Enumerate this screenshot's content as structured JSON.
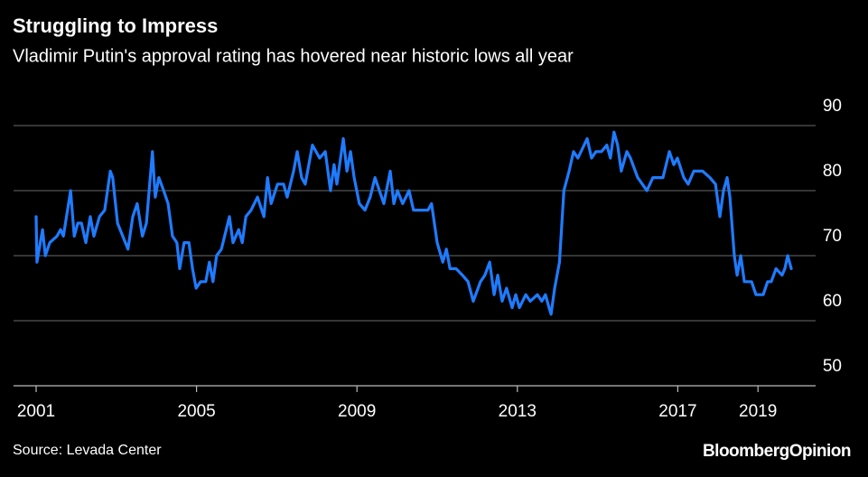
{
  "chart_data": {
    "type": "line",
    "title": "Struggling to Impress",
    "subtitle": "Vladimir Putin's approval rating has hovered near historic lows all year",
    "source": "Source: Levada Center",
    "logo": "BloombergOpinion",
    "x": [
      2001.0,
      2001.02,
      2001.16,
      2001.23,
      2001.34,
      2001.52,
      2001.61,
      2001.68,
      2001.86,
      2001.95,
      2002.04,
      2002.13,
      2002.24,
      2002.35,
      2002.44,
      2002.58,
      2002.71,
      2002.85,
      2002.91,
      2003.03,
      2003.16,
      2003.29,
      2003.41,
      2003.52,
      2003.65,
      2003.75,
      2003.9,
      2003.97,
      2004.06,
      2004.18,
      2004.29,
      2004.4,
      2004.51,
      2004.58,
      2004.69,
      2004.81,
      2004.9,
      2004.99,
      2005.1,
      2005.23,
      2005.32,
      2005.41,
      2005.5,
      2005.62,
      2005.82,
      2005.91,
      2006.05,
      2006.14,
      2006.23,
      2006.36,
      2006.52,
      2006.68,
      2006.77,
      2006.86,
      2007.02,
      2007.17,
      2007.26,
      2007.42,
      2007.51,
      2007.62,
      2007.71,
      2007.89,
      2008.07,
      2008.21,
      2008.34,
      2008.43,
      2008.5,
      2008.66,
      2008.75,
      2008.84,
      2008.93,
      2009.06,
      2009.2,
      2009.33,
      2009.45,
      2009.67,
      2009.83,
      2009.92,
      2010.01,
      2010.14,
      2010.3,
      2010.41,
      2010.57,
      2010.77,
      2010.86,
      2011.0,
      2011.14,
      2011.23,
      2011.32,
      2011.47,
      2011.63,
      2011.77,
      2011.9,
      2012.08,
      2012.19,
      2012.31,
      2012.42,
      2012.51,
      2012.62,
      2012.73,
      2012.87,
      2012.96,
      2013.05,
      2013.21,
      2013.32,
      2013.5,
      2013.61,
      2013.7,
      2013.79,
      2013.84,
      2013.93,
      2014.05,
      2014.16,
      2014.29,
      2014.4,
      2014.51,
      2014.74,
      2014.85,
      2014.96,
      2015.1,
      2015.23,
      2015.32,
      2015.41,
      2015.5,
      2015.59,
      2015.73,
      2015.82,
      2016.0,
      2016.23,
      2016.38,
      2016.63,
      2016.79,
      2016.9,
      2016.99,
      2017.15,
      2017.26,
      2017.4,
      2017.62,
      2017.8,
      2017.94,
      2018.05,
      2018.14,
      2018.23,
      2018.3,
      2018.41,
      2018.48,
      2018.57,
      2018.66,
      2018.84,
      2018.95,
      2019.13,
      2019.24,
      2019.33,
      2019.45,
      2019.6,
      2019.67,
      2019.74,
      2019.83
    ],
    "series": [
      {
        "color": "#1f7bff",
        "values": [
          76,
          69,
          74,
          70,
          72,
          73,
          74,
          73,
          80,
          73,
          75,
          75,
          72,
          76,
          73,
          76,
          77,
          83,
          82,
          75,
          73,
          71,
          76,
          78,
          73,
          75,
          86,
          79,
          82,
          80,
          78,
          73,
          72,
          68,
          72,
          72,
          68,
          65,
          66,
          66,
          69,
          66,
          70,
          71,
          76,
          72,
          74,
          72,
          76,
          77,
          79,
          76,
          82,
          78,
          81,
          81,
          79,
          83,
          86,
          82,
          81,
          87,
          85,
          86,
          80,
          84,
          81,
          88,
          83,
          86,
          82,
          78,
          77,
          79,
          82,
          78,
          83,
          78,
          80,
          78,
          80,
          77,
          77,
          77,
          78,
          72,
          69,
          71,
          68,
          68,
          67,
          66,
          63,
          66,
          67,
          69,
          64,
          67,
          63,
          65,
          62,
          64,
          62,
          64,
          63,
          64,
          63,
          64,
          62,
          61,
          65,
          69,
          80,
          83,
          86,
          85,
          88,
          85,
          86,
          86,
          87,
          85,
          89,
          87,
          83,
          86,
          85,
          82,
          80,
          82,
          82,
          86,
          84,
          85,
          82,
          81,
          83,
          83,
          82,
          81,
          76,
          80,
          82,
          79,
          70,
          67,
          70,
          66,
          66,
          64,
          64,
          66,
          66,
          68,
          67,
          68,
          70,
          68
        ]
      }
    ],
    "xlim": [
      2000.5,
      2020.5
    ],
    "xticks": [
      2001,
      2005,
      2009,
      2013,
      2017,
      2019
    ],
    "ylim": [
      50,
      90
    ],
    "yticks": [
      50,
      60,
      70,
      80,
      90
    ],
    "grid": true
  }
}
